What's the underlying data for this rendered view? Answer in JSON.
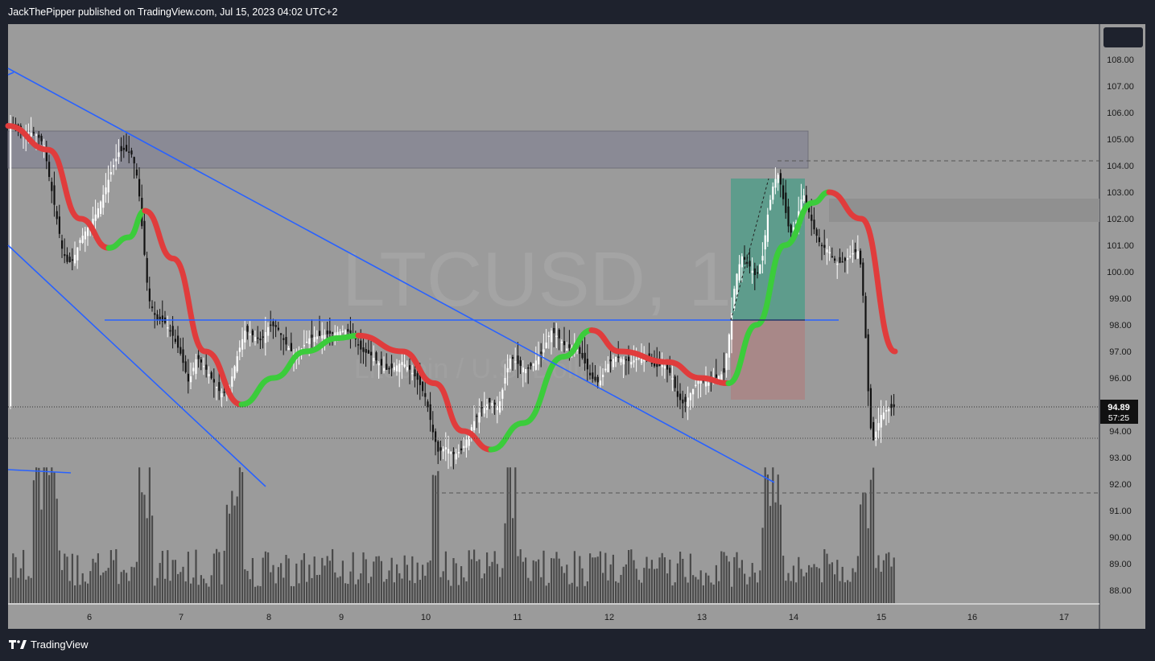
{
  "header": {
    "text": "JackThePipper published on TradingView.com, Jul 15, 2023 04:02 UTC+2"
  },
  "footer": {
    "brand": "TradingView"
  },
  "chart_data": {
    "type": "candlestick",
    "symbol_watermark": "LTCUSD, 1",
    "symbol_subtitle": "Litecoin / U.S. Dollar",
    "y_ticks": [
      "108.00",
      "107.00",
      "106.00",
      "105.00",
      "104.00",
      "103.00",
      "102.00",
      "101.00",
      "100.00",
      "99.00",
      "98.00",
      "97.00",
      "96.00",
      "95.00",
      "94.00",
      "93.00",
      "92.00",
      "91.00",
      "90.00",
      "89.00",
      "88.00"
    ],
    "x_ticks": [
      "6",
      "7",
      "8",
      "9",
      "10",
      "11",
      "12",
      "13",
      "14",
      "15",
      "16",
      "17"
    ],
    "ylim": [
      87.5,
      108.5
    ],
    "last_price": "94.89",
    "countdown": "57:25",
    "colors": {
      "background": "#9b9b9b",
      "axis": "#1e222d",
      "up": "#ffffff",
      "down": "#111111",
      "trend_lines": "#2962ff",
      "wave_up": "#3bcc3b",
      "wave_down": "#e03c3c",
      "volume": "#4a4a4a"
    }
  }
}
